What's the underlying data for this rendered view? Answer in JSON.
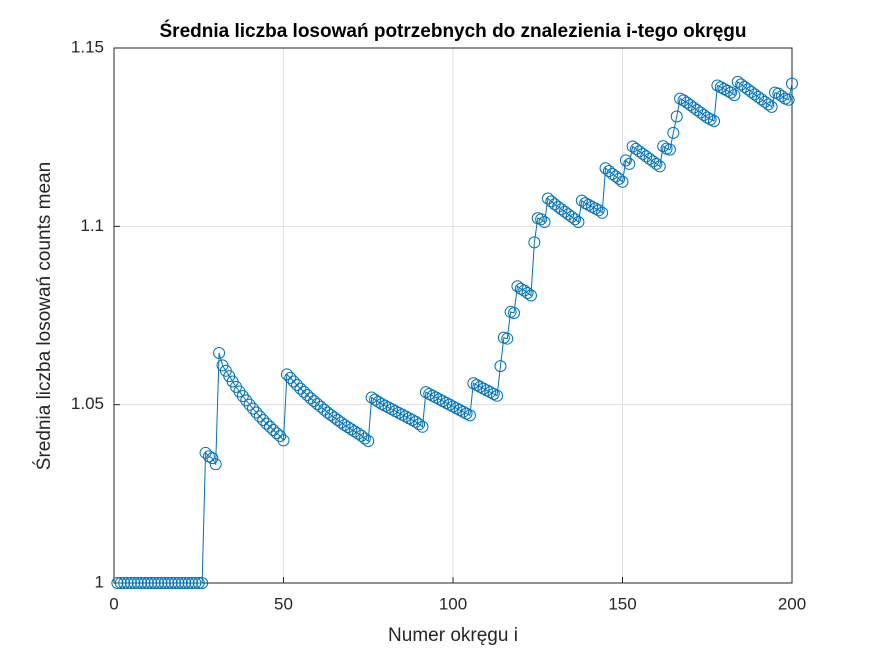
{
  "chart_data": {
    "type": "line",
    "title": "Średnia liczba losowań potrzebnych do znalezienia i-tego okręgu",
    "xlabel": "Numer okręgu i",
    "ylabel": "Średnia liczba losowań counts mean",
    "xlim": [
      0,
      200
    ],
    "ylim": [
      1,
      1.15
    ],
    "xticks": [
      0,
      50,
      100,
      150,
      200
    ],
    "yticks": [
      1,
      1.05,
      1.1,
      1.15
    ],
    "grid": true,
    "color": "#0072bd",
    "marker": "circle",
    "x": [
      1,
      2,
      3,
      4,
      5,
      6,
      7,
      8,
      9,
      10,
      11,
      12,
      13,
      14,
      15,
      16,
      17,
      18,
      19,
      20,
      21,
      22,
      23,
      24,
      25,
      26,
      27,
      28,
      29,
      30,
      31,
      32,
      33,
      34,
      35,
      36,
      37,
      38,
      39,
      40,
      41,
      42,
      43,
      44,
      45,
      46,
      47,
      48,
      49,
      50,
      51,
      52,
      53,
      54,
      55,
      56,
      57,
      58,
      59,
      60,
      61,
      62,
      63,
      64,
      65,
      66,
      67,
      68,
      69,
      70,
      71,
      72,
      73,
      74,
      75,
      76,
      77,
      78,
      79,
      80,
      81,
      82,
      83,
      84,
      85,
      86,
      87,
      88,
      89,
      90,
      91,
      92,
      93,
      94,
      95,
      96,
      97,
      98,
      99,
      100,
      101,
      102,
      103,
      104,
      105,
      106,
      107,
      108,
      109,
      110,
      111,
      112,
      113,
      114,
      115,
      116,
      117,
      118,
      119,
      120,
      121,
      122,
      123,
      124,
      125,
      126,
      127,
      128,
      129,
      130,
      131,
      132,
      133,
      134,
      135,
      136,
      137,
      138,
      139,
      140,
      141,
      142,
      143,
      144,
      145,
      146,
      147,
      148,
      149,
      150,
      151,
      152,
      153,
      154,
      155,
      156,
      157,
      158,
      159,
      160,
      161,
      162,
      163,
      164,
      165,
      166,
      167,
      168,
      169,
      170,
      171,
      172,
      173,
      174,
      175,
      176,
      177,
      178,
      179,
      180,
      181,
      182,
      183,
      184,
      185,
      186,
      187,
      188,
      189,
      190,
      191,
      192,
      193,
      194,
      195,
      196,
      197,
      198,
      199,
      200
    ],
    "values": [
      1,
      1,
      1,
      1,
      1,
      1,
      1,
      1,
      1,
      1,
      1,
      1,
      1,
      1,
      1,
      1,
      1,
      1,
      1,
      1,
      1,
      1,
      1,
      1,
      1,
      1,
      1.0365,
      1.0355,
      1.035,
      1.0333,
      1.0645,
      1.061,
      1.0595,
      1.058,
      1.0565,
      1.055,
      1.0537,
      1.0524,
      1.0512,
      1.05,
      1.0489,
      1.0478,
      1.0467,
      1.0457,
      1.0447,
      1.0438,
      1.0429,
      1.042,
      1.0412,
      1.04,
      1.0585,
      1.0575,
      1.0565,
      1.0555,
      1.0545,
      1.0536,
      1.0527,
      1.0518,
      1.051,
      1.0502,
      1.0494,
      1.0486,
      1.0478,
      1.0471,
      1.0464,
      1.0457,
      1.045,
      1.0443,
      1.0437,
      1.0431,
      1.0425,
      1.0419,
      1.0413,
      1.0405,
      1.0398,
      1.052,
      1.0514,
      1.0508,
      1.0502,
      1.0497,
      1.0492,
      1.0487,
      1.0482,
      1.0477,
      1.0472,
      1.0467,
      1.0462,
      1.0457,
      1.0452,
      1.0445,
      1.0438,
      1.0535,
      1.053,
      1.0525,
      1.052,
      1.0515,
      1.051,
      1.0505,
      1.05,
      1.0495,
      1.049,
      1.0485,
      1.048,
      1.0475,
      1.047,
      1.056,
      1.0555,
      1.055,
      1.0545,
      1.054,
      1.0535,
      1.053,
      1.0525,
      1.0608,
      1.0688,
      1.0685,
      1.076,
      1.0757,
      1.0832,
      1.0825,
      1.082,
      1.0813,
      1.0806,
      1.0955,
      1.1023,
      1.102,
      1.1012,
      1.1078,
      1.107,
      1.1062,
      1.1055,
      1.1048,
      1.1041,
      1.1034,
      1.1027,
      1.102,
      1.1012,
      1.1072,
      1.1065,
      1.106,
      1.1055,
      1.105,
      1.1045,
      1.1038,
      1.1163,
      1.1155,
      1.1147,
      1.114,
      1.1133,
      1.1125,
      1.1185,
      1.1175,
      1.1224,
      1.1217,
      1.121,
      1.1203,
      1.1196,
      1.1189,
      1.1182,
      1.1175,
      1.1168,
      1.1225,
      1.1218,
      1.1215,
      1.1262,
      1.1308,
      1.1358,
      1.1353,
      1.1347,
      1.134,
      1.1333,
      1.1326,
      1.1319,
      1.1312,
      1.1305,
      1.13,
      1.1295,
      1.1395,
      1.139,
      1.1385,
      1.138,
      1.1375,
      1.1368,
      1.1405,
      1.1398,
      1.1391,
      1.1384,
      1.1377,
      1.137,
      1.1363,
      1.1356,
      1.1349,
      1.1342,
      1.1335,
      1.1375,
      1.1372,
      1.1365,
      1.1358,
      1.1355,
      1.14
    ]
  }
}
